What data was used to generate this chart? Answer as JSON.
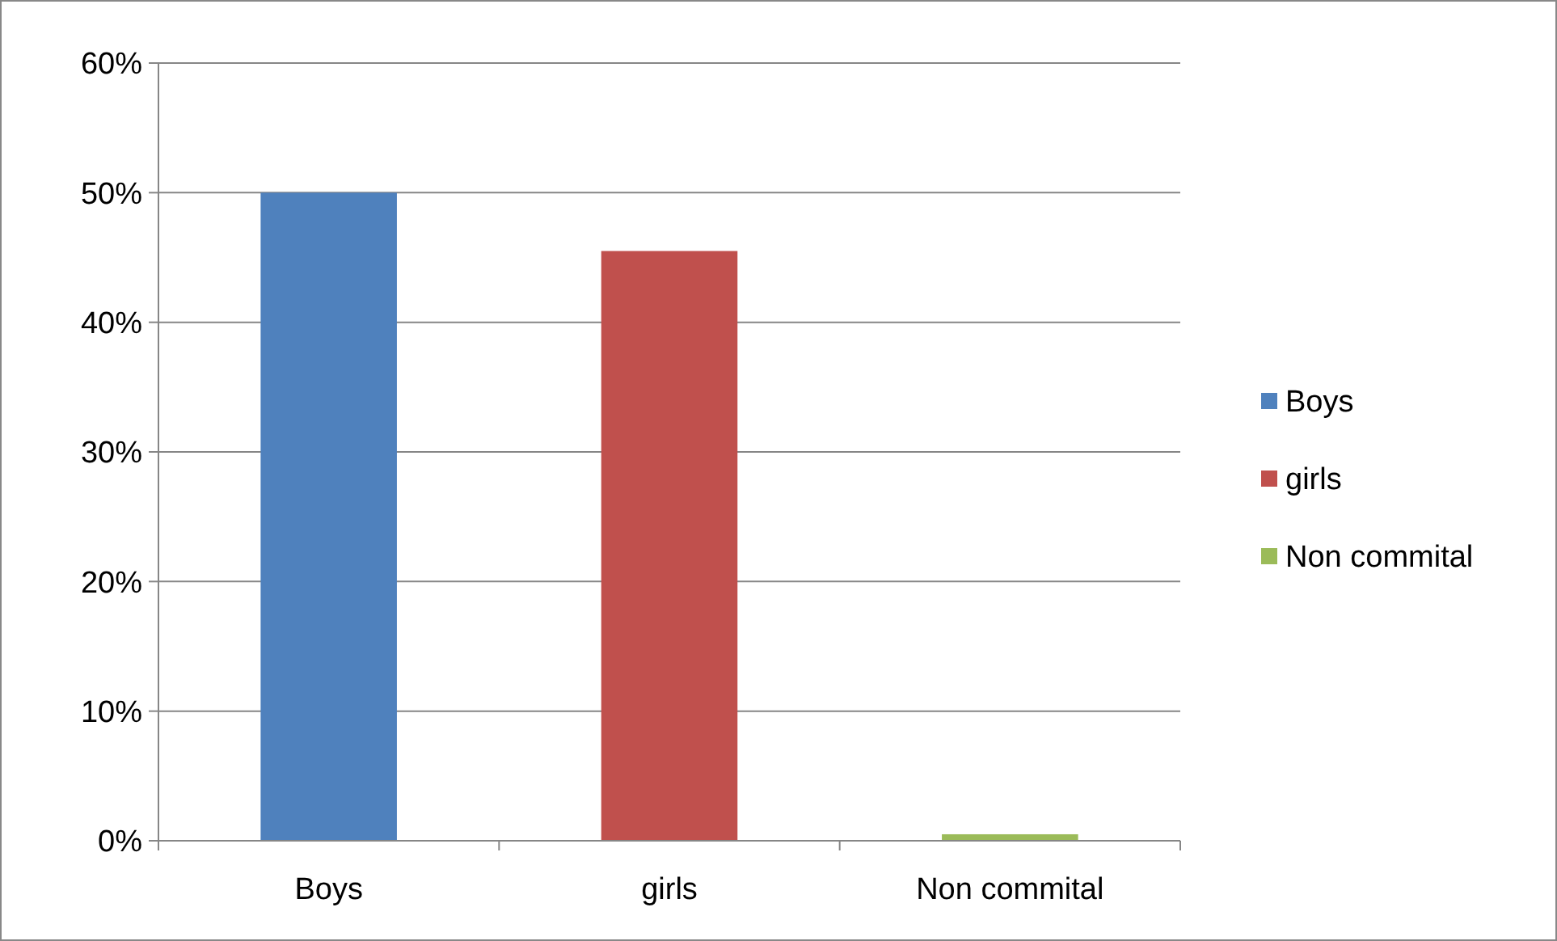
{
  "chart_data": {
    "type": "bar",
    "categories": [
      "Boys",
      "girls",
      "Non commital"
    ],
    "stacked": true,
    "series": [
      {
        "name": "Boys",
        "color": "#4f81bd",
        "values": [
          50,
          null,
          null
        ]
      },
      {
        "name": "girls",
        "color": "#c0504d",
        "values": [
          null,
          45.5,
          null
        ]
      },
      {
        "name": "Non commital",
        "color": "#9bbb59",
        "values": [
          null,
          null,
          0.5
        ]
      }
    ],
    "ylim": [
      0,
      60
    ],
    "yticks": [
      {
        "value": 0,
        "label": "0%"
      },
      {
        "value": 10,
        "label": "10%"
      },
      {
        "value": 20,
        "label": "20%"
      },
      {
        "value": 30,
        "label": "30%"
      },
      {
        "value": 40,
        "label": "40%"
      },
      {
        "value": 50,
        "label": "50%"
      },
      {
        "value": 60,
        "label": "60%"
      }
    ],
    "grid": "y",
    "legend": "right"
  }
}
